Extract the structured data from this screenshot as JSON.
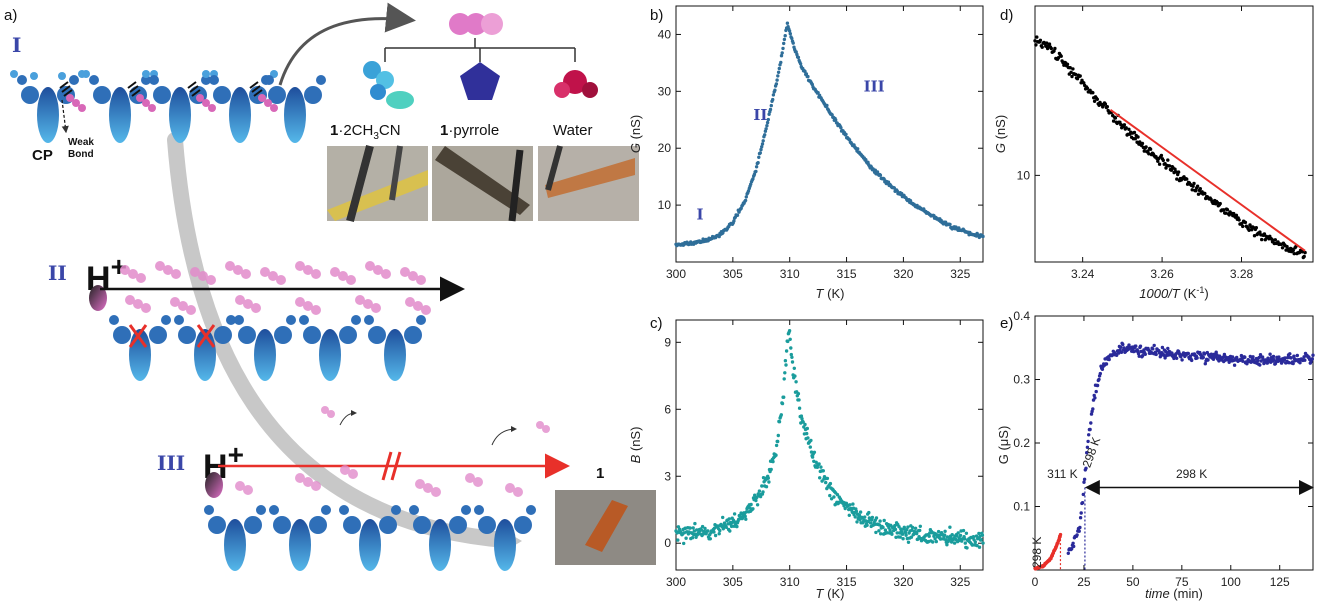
{
  "panel_labels": {
    "a": "a)",
    "b": "b)",
    "c": "c)",
    "d": "d)",
    "e": "e)"
  },
  "schematic": {
    "stage_I": "I",
    "stage_II": "II",
    "stage_III": "III",
    "cp_label": "CP",
    "weak_bond_line1": "Weak",
    "weak_bond_line2": "Bond",
    "proton_II": "H",
    "proton_II_charge": "+",
    "proton_III": "H",
    "proton_III_charge": "+",
    "guest_1_bold": "1",
    "guest_1_text": "·2CH",
    "guest_1_sub": "3",
    "guest_1_end": "CN",
    "guest_2_bold": "1",
    "guest_2_text": "·pyrrole",
    "guest_3": "Water",
    "compound_label": "1",
    "colors": {
      "framework": "#2f6fb8",
      "guest": "#d868b8",
      "arrow_II": "#111111",
      "arrow_III": "#e8302a",
      "stage_label": "#3a46a8"
    }
  },
  "chart_data": [
    {
      "id": "b",
      "type": "scatter",
      "xlabel_main": "T",
      "xlabel_unit": " (K)",
      "ylabel_main": "G",
      "ylabel_unit": " (nS)",
      "xlim": [
        300,
        327
      ],
      "ylim": [
        0,
        45
      ],
      "xticks": [
        300,
        305,
        310,
        315,
        320,
        325
      ],
      "yticks": [
        10,
        20,
        30,
        40
      ],
      "color": "#2f6e99",
      "annotations": [
        {
          "text": "I",
          "x": 301.8,
          "y": 7.5
        },
        {
          "text": "II",
          "x": 306.8,
          "y": 25
        },
        {
          "text": "III",
          "x": 316.5,
          "y": 30
        }
      ],
      "points": [
        [
          300,
          3.0
        ],
        [
          301,
          3.2
        ],
        [
          302,
          3.5
        ],
        [
          303,
          4.0
        ],
        [
          304,
          5.0
        ],
        [
          305,
          7.0
        ],
        [
          306,
          10.5
        ],
        [
          307,
          16
        ],
        [
          308,
          24
        ],
        [
          309,
          33
        ],
        [
          309.8,
          42
        ],
        [
          310.5,
          37
        ],
        [
          311,
          34.5
        ],
        [
          312,
          31
        ],
        [
          313,
          28
        ],
        [
          314,
          25
        ],
        [
          315,
          22
        ],
        [
          316,
          19.5
        ],
        [
          317,
          17
        ],
        [
          318,
          15
        ],
        [
          319,
          13.2
        ],
        [
          320,
          11.5
        ],
        [
          321,
          10
        ],
        [
          322,
          8.8
        ],
        [
          323,
          7.5
        ],
        [
          324,
          6.5
        ],
        [
          325,
          5.6
        ],
        [
          326,
          4.9
        ],
        [
          327,
          4.5
        ]
      ]
    },
    {
      "id": "c",
      "type": "scatter",
      "xlabel_main": "T",
      "xlabel_unit": " (K)",
      "ylabel_main": "B",
      "ylabel_unit": " (nS)",
      "xlim": [
        300,
        327
      ],
      "ylim": [
        -1.2,
        10
      ],
      "xticks": [
        300,
        305,
        310,
        315,
        320,
        325
      ],
      "yticks": [
        0,
        3,
        6,
        9
      ],
      "color": "#1a9c9c",
      "points": [
        [
          300,
          0.4
        ],
        [
          302,
          0.5
        ],
        [
          304,
          0.7
        ],
        [
          305,
          0.9
        ],
        [
          306,
          1.3
        ],
        [
          307,
          1.9
        ],
        [
          308,
          2.9
        ],
        [
          308.8,
          4.2
        ],
        [
          309.4,
          6.5
        ],
        [
          309.9,
          9.6
        ],
        [
          310.4,
          7.5
        ],
        [
          311,
          5.6
        ],
        [
          312,
          4.0
        ],
        [
          313,
          2.9
        ],
        [
          314,
          2.1
        ],
        [
          315,
          1.6
        ],
        [
          316,
          1.2
        ],
        [
          318,
          0.8
        ],
        [
          320,
          0.5
        ],
        [
          322,
          0.35
        ],
        [
          324,
          0.25
        ],
        [
          327,
          0.1
        ]
      ]
    },
    {
      "id": "d",
      "type": "scatter",
      "xlabel_main": "1000/T",
      "xlabel_unit": " (K",
      "xlabel_sup": "-1",
      "xlabel_end": ")",
      "ylabel_main": "G",
      "ylabel_unit": " (nS)",
      "log_y": true,
      "xlim": [
        3.228,
        3.298
      ],
      "ylim": [
        4,
        60
      ],
      "xticks": [
        3.24,
        3.26,
        3.28
      ],
      "ytick_labels": [
        {
          "value": 10,
          "label": "10"
        }
      ],
      "color": "#000000",
      "fit_color": "#e8302a",
      "points": [
        [
          3.228,
          42
        ],
        [
          3.232,
          38
        ],
        [
          3.236,
          32
        ],
        [
          3.24,
          26.5
        ],
        [
          3.244,
          22
        ],
        [
          3.248,
          18.5
        ],
        [
          3.252,
          15.5
        ],
        [
          3.256,
          13.2
        ],
        [
          3.26,
          11.5
        ],
        [
          3.264,
          10
        ],
        [
          3.268,
          8.8
        ],
        [
          3.272,
          7.8
        ],
        [
          3.276,
          6.9
        ],
        [
          3.28,
          6.1
        ],
        [
          3.284,
          5.5
        ],
        [
          3.288,
          5.0
        ],
        [
          3.292,
          4.6
        ],
        [
          3.296,
          4.4
        ]
      ],
      "fit": [
        [
          3.247,
          20
        ],
        [
          3.296,
          4.5
        ]
      ]
    },
    {
      "id": "e",
      "type": "scatter",
      "xlabel_main": "time",
      "xlabel_unit": " (min)",
      "ylabel_main": "G (",
      "ylabel_unit": "μS)",
      "xlim": [
        0,
        142
      ],
      "ylim": [
        0,
        0.4
      ],
      "xticks": [
        0,
        25,
        50,
        75,
        100,
        125
      ],
      "yticks": [
        0.1,
        0.2,
        0.3,
        0.4
      ],
      "series": [
        {
          "color": "#e8302a",
          "points": [
            [
              0,
              0.002
            ],
            [
              4,
              0.006
            ],
            [
              8,
              0.018
            ],
            [
              11,
              0.038
            ],
            [
              13,
              0.055
            ]
          ]
        },
        {
          "color": "#2a2a9a",
          "points": [
            [
              17,
              0.03
            ],
            [
              20,
              0.045
            ],
            [
              23,
              0.07
            ],
            [
              25,
              0.13
            ],
            [
              27,
              0.2
            ],
            [
              30,
              0.27
            ],
            [
              34,
              0.32
            ],
            [
              40,
              0.34
            ],
            [
              45,
              0.35
            ],
            [
              55,
              0.345
            ],
            [
              70,
              0.34
            ],
            [
              90,
              0.335
            ],
            [
              110,
              0.33
            ],
            [
              125,
              0.33
            ],
            [
              142,
              0.335
            ]
          ]
        }
      ],
      "annotations": [
        {
          "text": "311 K",
          "color": "#e8302a",
          "rotated": false
        },
        {
          "text": "298 K",
          "color": "#2a2a9a",
          "rotated": true
        },
        {
          "text": "298 K",
          "color": "#2a2a9a",
          "rotated": true
        },
        {
          "text": "298 K",
          "color": "#2a2a9a",
          "rotated": false
        }
      ]
    }
  ]
}
